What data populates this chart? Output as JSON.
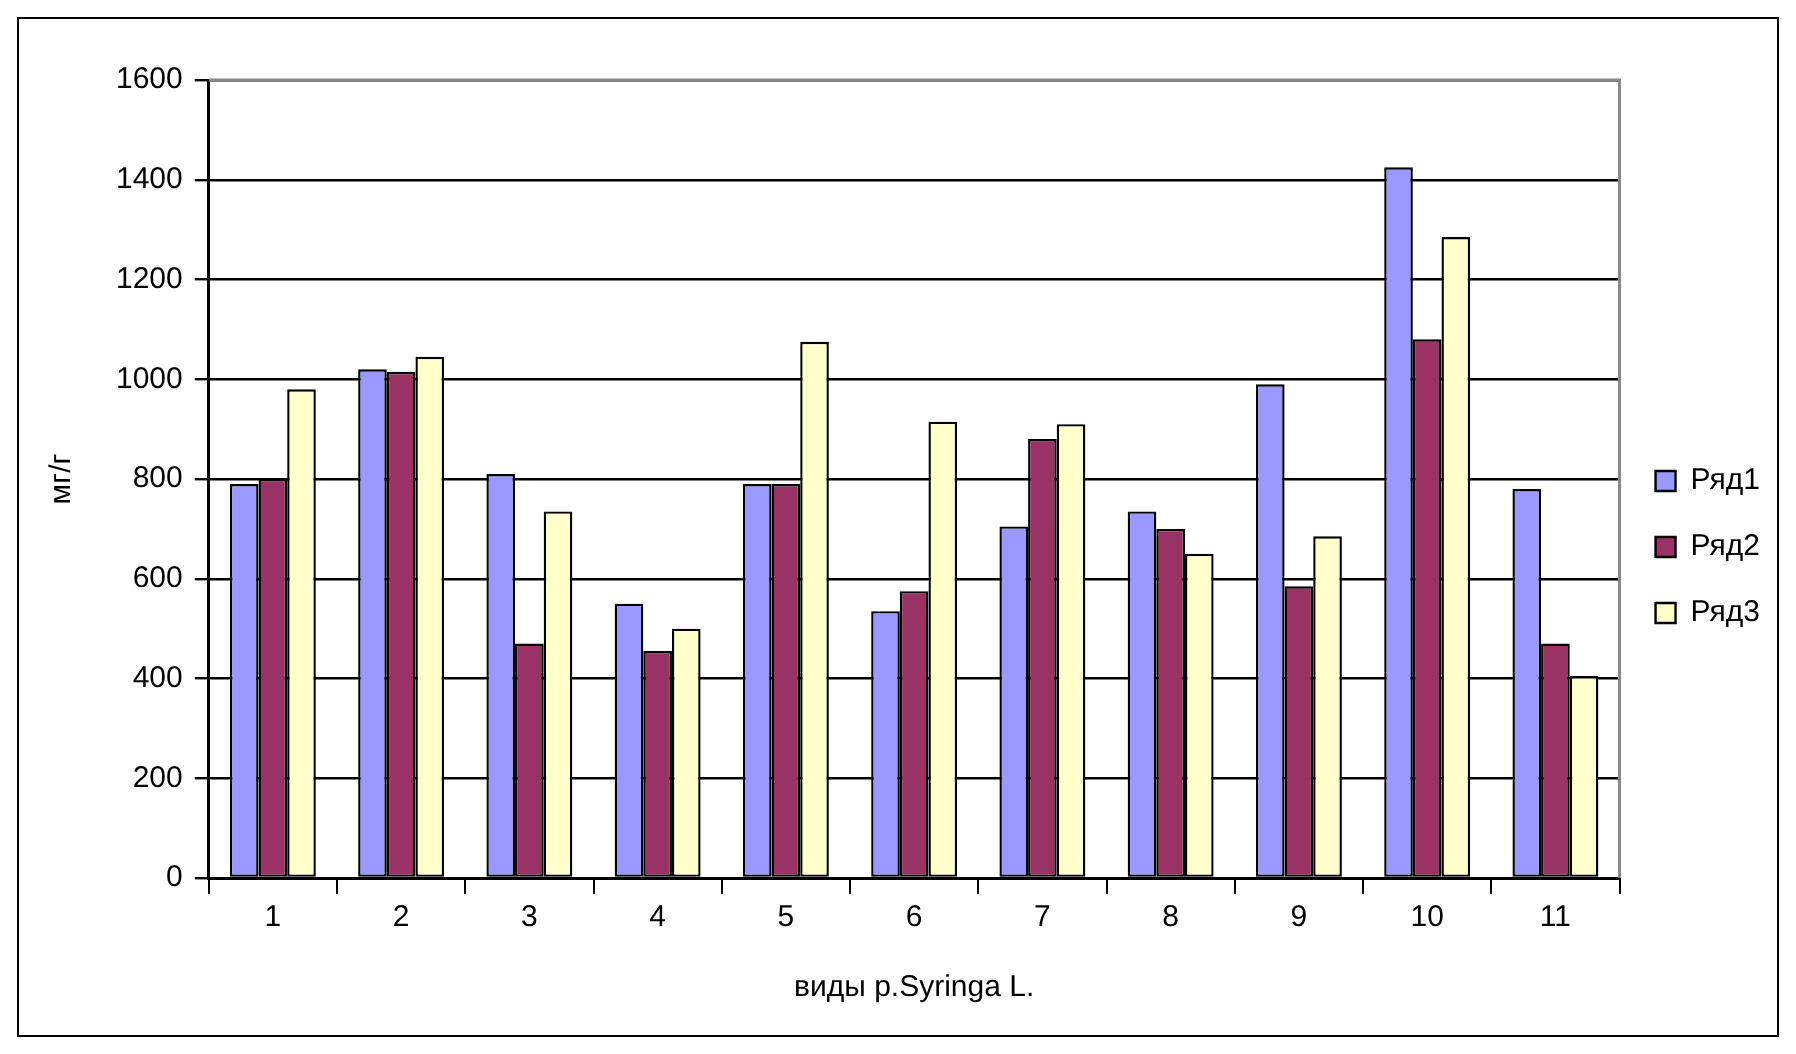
{
  "chart_data": {
    "type": "bar",
    "xlabel": "виды р.Syringa L.",
    "ylabel": "мг/г",
    "categories": [
      "1",
      "2",
      "3",
      "4",
      "5",
      "6",
      "7",
      "8",
      "9",
      "10",
      "11"
    ],
    "series": [
      {
        "name": "Ряд1",
        "color": "#9999ff",
        "values": [
          790,
          1020,
          810,
          550,
          790,
          535,
          705,
          735,
          990,
          1425,
          780
        ]
      },
      {
        "name": "Ряд2",
        "color": "#993366",
        "values": [
          800,
          1015,
          470,
          455,
          790,
          575,
          880,
          700,
          585,
          1080,
          470
        ]
      },
      {
        "name": "Ряд3",
        "color": "#ffffcc",
        "values": [
          980,
          1045,
          735,
          500,
          1075,
          915,
          910,
          650,
          685,
          1285,
          405
        ]
      }
    ],
    "ylim": [
      0,
      1600
    ],
    "yticks": [
      0,
      200,
      400,
      600,
      800,
      1000,
      1200,
      1400,
      1600
    ],
    "grid": "y",
    "legend": "right"
  }
}
